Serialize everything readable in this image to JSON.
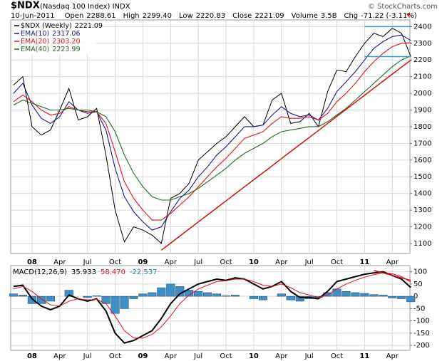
{
  "header": {
    "symbol": "$NDX",
    "title": "(Nasdaq 100 Index) INDX",
    "date": "10-Jun-2011",
    "copyright": "© StockCharts.com",
    "fields": [
      {
        "label": "Open",
        "value": "2288.61"
      },
      {
        "label": "High",
        "value": "2299.40"
      },
      {
        "label": "Low",
        "value": "2220.83"
      },
      {
        "label": "Close",
        "value": "2221.09"
      },
      {
        "label": "Volume",
        "value": "3.5B"
      },
      {
        "label": "Chg",
        "value": "-71.22 (-3.11%)"
      }
    ]
  },
  "chart_data": [
    {
      "type": "line",
      "categories": [
        null,
        null,
        "08",
        null,
        null,
        "Apr",
        null,
        null,
        "Jul",
        null,
        null,
        "Oct",
        null,
        null,
        "09",
        null,
        null,
        "Apr",
        null,
        null,
        "Jul",
        null,
        null,
        "Oct",
        null,
        null,
        "10",
        null,
        null,
        "Apr",
        null,
        null,
        "Jul",
        null,
        null,
        "Oct",
        null,
        null,
        "11",
        null,
        null,
        "Apr",
        null,
        null
      ],
      "ylim": [
        1040,
        2440
      ],
      "yticks": [
        1100,
        1200,
        1300,
        1400,
        1500,
        1600,
        1700,
        1800,
        1900,
        2000,
        2100,
        2200,
        2300,
        2400
      ],
      "grid": true,
      "series": [
        {
          "name": "$NDX (Weekly)",
          "color": "#000000",
          "values": [
            2050,
            2100,
            1800,
            1750,
            1780,
            1900,
            2030,
            1840,
            1860,
            1910,
            1630,
            1300,
            1110,
            1200,
            1180,
            1150,
            1100,
            1370,
            1400,
            1460,
            1600,
            1650,
            1700,
            1740,
            1800,
            1860,
            1800,
            1810,
            1960,
            2000,
            1820,
            1830,
            1880,
            1800,
            2010,
            2140,
            2130,
            2220,
            2300,
            2360,
            2340,
            2390,
            2360,
            2221.09
          ]
        },
        {
          "name": "EMA(10)",
          "color": "#1a1a8c",
          "values": [
            2000,
            2060,
            1930,
            1850,
            1820,
            1860,
            1950,
            1900,
            1880,
            1890,
            1780,
            1550,
            1380,
            1290,
            1230,
            1180,
            1200,
            1290,
            1370,
            1420,
            1500,
            1560,
            1630,
            1680,
            1740,
            1800,
            1800,
            1810,
            1870,
            1920,
            1880,
            1860,
            1870,
            1840,
            1910,
            2010,
            2070,
            2130,
            2200,
            2270,
            2310,
            2340,
            2350,
            2317.06
          ]
        },
        {
          "name": "EMA(20)",
          "color": "#e0141e",
          "values": [
            1950,
            1990,
            1950,
            1900,
            1870,
            1880,
            1920,
            1900,
            1890,
            1890,
            1820,
            1650,
            1470,
            1370,
            1300,
            1240,
            1240,
            1280,
            1330,
            1380,
            1440,
            1500,
            1560,
            1610,
            1670,
            1730,
            1750,
            1770,
            1820,
            1860,
            1850,
            1850,
            1860,
            1840,
            1880,
            1950,
            2000,
            2060,
            2130,
            2190,
            2240,
            2280,
            2300,
            2303.2
          ],
          "value_labels": [
            null,
            null,
            null,
            null,
            null,
            null,
            null,
            null,
            null,
            null,
            null,
            null,
            null,
            null,
            null,
            null,
            null,
            null,
            null,
            null,
            null,
            null,
            null,
            null,
            null,
            null,
            null,
            null,
            null,
            null,
            null,
            null,
            null,
            null,
            null,
            null,
            null,
            null,
            null,
            null,
            null,
            null,
            null,
            "2303.20"
          ]
        },
        {
          "name": "EMA(40)",
          "color": "#1e6e1e",
          "values": [
            1930,
            1960,
            1940,
            1920,
            1900,
            1900,
            1910,
            1900,
            1900,
            1890,
            1860,
            1770,
            1630,
            1520,
            1440,
            1380,
            1360,
            1360,
            1380,
            1400,
            1430,
            1470,
            1510,
            1550,
            1600,
            1640,
            1670,
            1700,
            1740,
            1770,
            1780,
            1790,
            1800,
            1800,
            1830,
            1870,
            1910,
            1960,
            2010,
            2060,
            2110,
            2160,
            2200,
            2223.99
          ]
        }
      ],
      "overlays": [
        {
          "color": "#d01010",
          "values": [
            null,
            null,
            null,
            null,
            null,
            null,
            null,
            null,
            null,
            null,
            null,
            null,
            null,
            null,
            null,
            null,
            1060,
            1102,
            1144,
            1187,
            1229,
            1271,
            1313,
            1355,
            1398,
            1440,
            1482,
            1524,
            1566,
            1609,
            1651,
            1693,
            1735,
            1777,
            1820,
            1862,
            1904,
            1946,
            1988,
            2031,
            2073,
            2115,
            2157,
            2199
          ]
        },
        {
          "color": "#2a9ad0",
          "values": [
            null,
            null,
            null,
            null,
            null,
            null,
            null,
            null,
            null,
            null,
            null,
            null,
            null,
            null,
            null,
            null,
            null,
            null,
            null,
            null,
            null,
            null,
            null,
            null,
            null,
            null,
            null,
            null,
            null,
            null,
            null,
            null,
            null,
            null,
            null,
            null,
            null,
            null,
            2400,
            2400,
            2400,
            2400,
            2400,
            2400
          ]
        },
        {
          "color": "#2a9ad0",
          "values": [
            null,
            null,
            null,
            null,
            null,
            null,
            null,
            null,
            null,
            null,
            null,
            null,
            null,
            null,
            null,
            null,
            null,
            null,
            null,
            null,
            null,
            null,
            null,
            null,
            null,
            null,
            null,
            null,
            null,
            null,
            null,
            null,
            null,
            null,
            null,
            null,
            null,
            null,
            2220,
            2220,
            2220,
            2220,
            2220,
            2220
          ]
        }
      ]
    },
    {
      "type": "line",
      "label": "MACD(12,26,9)",
      "categories": [
        null,
        null,
        "08",
        null,
        null,
        "Apr",
        null,
        null,
        "Jul",
        null,
        null,
        "Oct",
        null,
        null,
        "09",
        null,
        null,
        "Apr",
        null,
        null,
        "Jul",
        null,
        null,
        "Oct",
        null,
        null,
        "10",
        null,
        null,
        "Apr",
        null,
        null,
        "Jul",
        null,
        null,
        "Oct",
        null,
        null,
        "11",
        null,
        null,
        "Apr",
        null,
        null
      ],
      "ylim": [
        -220,
        125
      ],
      "yticks": [
        100,
        50,
        0,
        -50,
        -100,
        -150,
        -200
      ],
      "grid": true,
      "series": [
        {
          "style": "bar",
          "color": "#3f8fc6",
          "values": [
            10,
            5,
            -30,
            -30,
            -20,
            0,
            25,
            0,
            -5,
            2,
            -30,
            -70,
            -50,
            -10,
            10,
            15,
            35,
            50,
            40,
            25,
            20,
            15,
            10,
            2,
            5,
            0,
            -10,
            -15,
            0,
            10,
            -15,
            -20,
            -10,
            -5,
            15,
            30,
            20,
            15,
            12,
            7,
            5,
            -7,
            -10,
            -22.537
          ]
        },
        {
          "style": "line",
          "color": "#000000",
          "width": 2,
          "values": [
            40,
            45,
            -10,
            -40,
            -55,
            -40,
            5,
            -10,
            -20,
            -10,
            -60,
            -150,
            -190,
            -180,
            -160,
            -140,
            -90,
            -30,
            10,
            30,
            50,
            60,
            70,
            65,
            75,
            70,
            50,
            30,
            40,
            60,
            20,
            -5,
            -5,
            -10,
            20,
            60,
            70,
            80,
            90,
            95,
            100,
            85,
            70,
            35.933
          ]
        },
        {
          "style": "line",
          "color": "#e0141e",
          "width": 1,
          "values": [
            30,
            40,
            20,
            -10,
            -35,
            -40,
            -20,
            -10,
            -15,
            -12,
            -30,
            -80,
            -140,
            -170,
            -170,
            -155,
            -125,
            -80,
            -30,
            5,
            30,
            45,
            60,
            63,
            70,
            70,
            60,
            45,
            40,
            50,
            35,
            15,
            5,
            -5,
            5,
            30,
            50,
            65,
            78,
            88,
            95,
            92,
            80,
            58.47
          ],
          "value_labels": [
            null,
            null,
            null,
            null,
            null,
            null,
            null,
            null,
            null,
            null,
            null,
            null,
            null,
            null,
            null,
            null,
            null,
            null,
            null,
            null,
            null,
            null,
            null,
            null,
            null,
            null,
            null,
            null,
            null,
            null,
            null,
            null,
            null,
            null,
            null,
            null,
            null,
            null,
            null,
            null,
            null,
            null,
            null,
            "58.470"
          ]
        }
      ],
      "overlays": [
        {
          "color": "#d01010",
          "values": [
            null,
            null,
            null,
            null,
            null,
            null,
            null,
            null,
            null,
            null,
            null,
            null,
            null,
            null,
            null,
            null,
            null,
            null,
            null,
            null,
            null,
            null,
            null,
            null,
            null,
            null,
            null,
            null,
            null,
            null,
            null,
            null,
            null,
            null,
            null,
            null,
            null,
            null,
            null,
            105,
            95,
            85,
            75,
            65
          ]
        }
      ]
    }
  ]
}
